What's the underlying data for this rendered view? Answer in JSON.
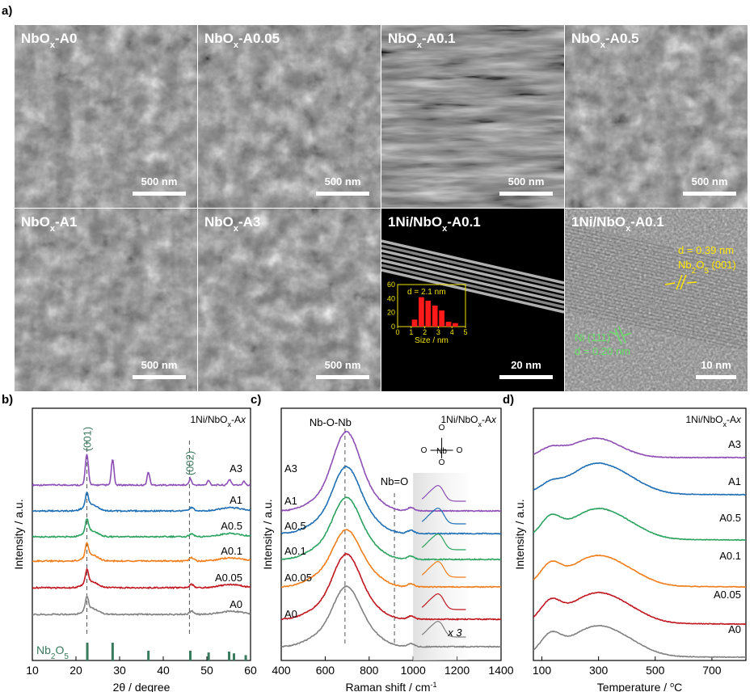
{
  "panel_a": {
    "label": "a)",
    "micrographs": [
      {
        "title_html": "NbO<tspan baseline-shift=\"sub\" font-size=\"11\">x</tspan>-A0",
        "scale": "500 nm",
        "tone": "sem"
      },
      {
        "title_html": "NbO<tspan baseline-shift=\"sub\" font-size=\"11\">x</tspan>-A0.05",
        "scale": "500 nm",
        "tone": "sem"
      },
      {
        "title_html": "NbO<tspan baseline-shift=\"sub\" font-size=\"11\">x</tspan>-A0.1",
        "scale": "500 nm",
        "tone": "semdark"
      },
      {
        "title_html": "NbO<tspan baseline-shift=\"sub\" font-size=\"11\">x</tspan>-A0.5",
        "scale": "500 nm",
        "tone": "sem"
      },
      {
        "title_html": "NbO<tspan baseline-shift=\"sub\" font-size=\"11\">x</tspan>-A1",
        "scale": "500 nm",
        "tone": "sem"
      },
      {
        "title_html": "NbO<tspan baseline-shift=\"sub\" font-size=\"11\">x</tspan>-A3",
        "scale": "500 nm",
        "tone": "sem"
      },
      {
        "title_html": "1Ni/NbO<tspan baseline-shift=\"sub\" font-size=\"11\">x</tspan>-A0.1",
        "scale": "20 nm",
        "tone": "stem"
      },
      {
        "title_html": "1Ni/NbO<tspan baseline-shift=\"sub\" font-size=\"11\">x</tspan>-A0.1",
        "scale": "10 nm",
        "tone": "hrtem"
      }
    ],
    "inset_histogram": {
      "annotation": "d = 2.1 nm",
      "xlabel": "Size / nm",
      "xticks": [
        0,
        1,
        2,
        3,
        4,
        5
      ],
      "yticks": [
        0,
        20,
        40,
        60
      ],
      "bins": [
        {
          "x": 1.25,
          "v": 10
        },
        {
          "x": 1.75,
          "v": 42
        },
        {
          "x": 2.25,
          "v": 37
        },
        {
          "x": 2.75,
          "v": 30
        },
        {
          "x": 3.25,
          "v": 23
        },
        {
          "x": 3.75,
          "v": 7
        },
        {
          "x": 4.25,
          "v": 5
        }
      ]
    },
    "hrtem_labels": {
      "nb_d": "d = 0.39 nm",
      "nb_phase_html": "Nb<tspan baseline-shift=\"sub\" font-size=\"10\">2</tspan>O<tspan baseline-shift=\"sub\" font-size=\"10\">5</tspan> (001)",
      "ni_phase": "Ni (111)",
      "ni_d": "d = 0.20 nm"
    }
  },
  "chart_data": [
    {
      "panel": "b)",
      "type": "line",
      "title_html": "1Ni/NbO<tspan baseline-shift=\"sub\" font-size=\"9\">x</tspan>-A<tspan font-style=\"italic\">x</tspan>",
      "xlabel_html": "2θ / degree",
      "ylabel": "Intensity / a.u.",
      "xlim": [
        10,
        60
      ],
      "xticks": [
        10,
        20,
        30,
        40,
        50,
        60
      ],
      "peak_labels": [
        "(001)",
        "(002)"
      ],
      "dashed_at": [
        22.5,
        46.0
      ],
      "reference": {
        "name_html": "Nb<tspan baseline-shift=\"sub\" font-size=\"10\">2</tspan>O<tspan baseline-shift=\"sub\" font-size=\"10\">5</tspan>",
        "color": "#3a7a5e",
        "sticks": [
          [
            22.6,
            1.0
          ],
          [
            28.4,
            1.0
          ],
          [
            36.6,
            0.55
          ],
          [
            46.2,
            0.55
          ],
          [
            50.4,
            0.45
          ],
          [
            55.1,
            0.5
          ],
          [
            56.2,
            0.4
          ],
          [
            58.9,
            0.3
          ]
        ]
      },
      "series": [
        {
          "name": "A3",
          "color": "#8e4fb5"
        },
        {
          "name": "A1",
          "color": "#1f6fb4"
        },
        {
          "name": "A0.5",
          "color": "#2ca25f"
        },
        {
          "name": "A0.1",
          "color": "#f07e1b"
        },
        {
          "name": "A0.05",
          "color": "#c0161f"
        },
        {
          "name": "A0",
          "color": "#808080"
        }
      ]
    },
    {
      "panel": "c)",
      "type": "line",
      "title_html": "1Ni/NbO<tspan baseline-shift=\"sub\" font-size=\"9\">x</tspan>-A<tspan font-style=\"italic\">x</tspan>",
      "xlabel_html": "Raman shift / cm<tspan baseline-shift=\"super\" font-size=\"9\">-1</tspan>",
      "ylabel": "Intensity / a.u.",
      "xlim": [
        400,
        1400
      ],
      "xticks": [
        400,
        600,
        800,
        1000,
        1200,
        1400
      ],
      "annotations": [
        "Nb-O-Nb",
        "Nb=O",
        "x 3"
      ],
      "dashed_at": [
        690,
        915
      ],
      "series": [
        {
          "name": "A3",
          "color": "#8e4fb5"
        },
        {
          "name": "A1",
          "color": "#1f6fb4"
        },
        {
          "name": "A0.5",
          "color": "#2ca25f"
        },
        {
          "name": "A0.1",
          "color": "#f07e1b"
        },
        {
          "name": "A0.05",
          "color": "#c0161f"
        },
        {
          "name": "A0",
          "color": "#808080"
        }
      ]
    },
    {
      "panel": "d)",
      "type": "line",
      "title_html": "1Ni/NbO<tspan baseline-shift=\"sub\" font-size=\"9\">x</tspan>-A<tspan font-style=\"italic\">x</tspan>",
      "xlabel_html": "Temperature / <tspan baseline-shift=\"super\" font-size=\"9\">o</tspan>C",
      "ylabel": "Intensity / a.u.",
      "xlim": [
        70,
        820
      ],
      "xticks": [
        100,
        300,
        500,
        700
      ],
      "series": [
        {
          "name": "A3",
          "color": "#8e4fb5"
        },
        {
          "name": "A1",
          "color": "#1f6fb4"
        },
        {
          "name": "A0.5",
          "color": "#2ca25f"
        },
        {
          "name": "A0.1",
          "color": "#f07e1b"
        },
        {
          "name": "A0.05",
          "color": "#c0161f"
        },
        {
          "name": "A0",
          "color": "#808080"
        }
      ]
    }
  ]
}
